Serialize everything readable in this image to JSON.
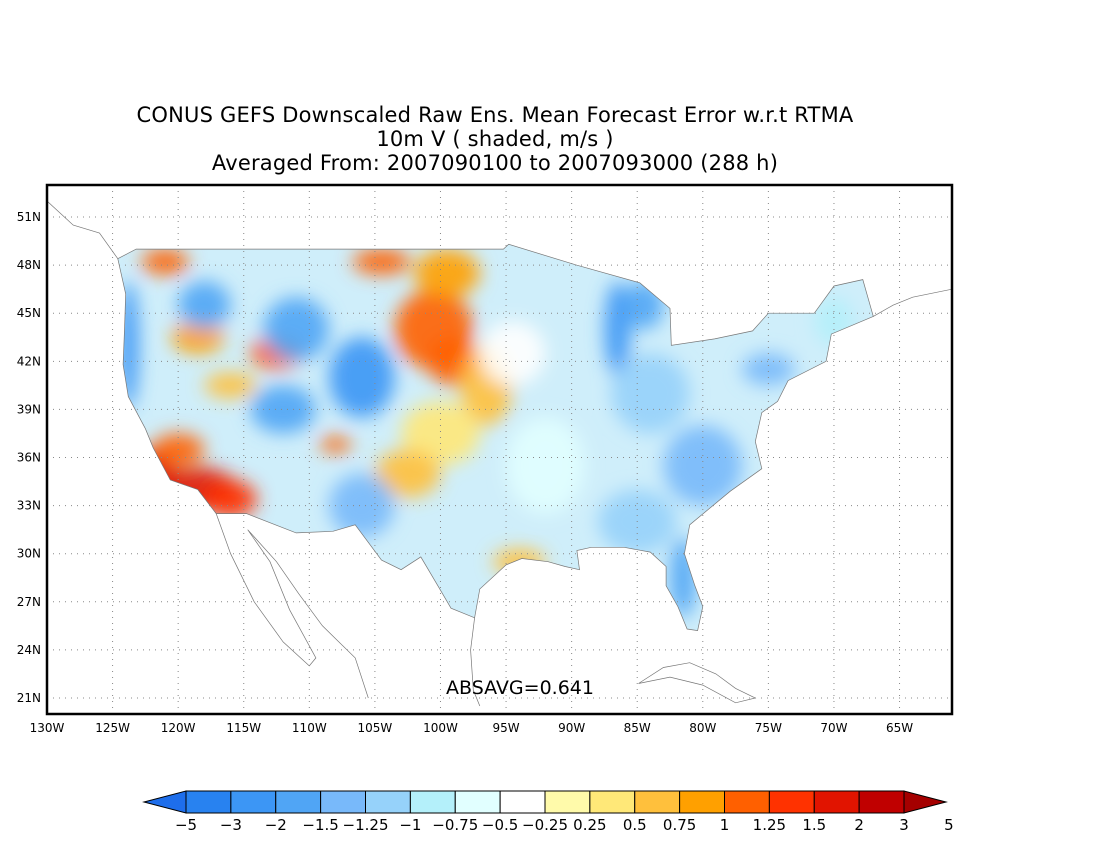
{
  "title": {
    "line1": "CONUS GEFS Downscaled Raw Ens. Mean Forecast Error w.r.t RTMA",
    "line2": "10m V ( shaded, m/s )",
    "line3": "Averaged From: 2007090100 to 2007093000 (288 h)"
  },
  "stat_label": "ABSAVG=0.641",
  "lat_labels": [
    "51N",
    "48N",
    "45N",
    "42N",
    "39N",
    "36N",
    "33N",
    "30N",
    "27N",
    "24N",
    "21N"
  ],
  "lat_values": [
    51,
    48,
    45,
    42,
    39,
    36,
    33,
    30,
    27,
    24,
    21
  ],
  "lon_labels": [
    "130W",
    "125W",
    "120W",
    "115W",
    "110W",
    "105W",
    "100W",
    "95W",
    "90W",
    "85W",
    "80W",
    "75W",
    "70W",
    "65W"
  ],
  "lon_values": [
    -130,
    -125,
    -120,
    -115,
    -110,
    -105,
    -100,
    -95,
    -90,
    -85,
    -80,
    -75,
    -70,
    -65
  ],
  "map_extent": {
    "lon_min": -130,
    "lon_max": -61,
    "lat_min": 20,
    "lat_max": 53
  },
  "colorbar": {
    "labels": [
      "−5",
      "−3",
      "−2",
      "−1.5",
      "−1.25",
      "−1",
      "−0.75",
      "−0.5",
      "−0.25",
      "0.25",
      "0.5",
      "0.75",
      "1",
      "1.25",
      "1.5",
      "2",
      "3",
      "5"
    ],
    "colors": [
      "#1e6eeb",
      "#2882f0",
      "#3c96f5",
      "#50a5f5",
      "#78b9fa",
      "#96d2fa",
      "#b4f0fa",
      "#e1ffff",
      "#ffffff",
      "#fffaaa",
      "#ffe878",
      "#ffc03c",
      "#ffa000",
      "#ff6000",
      "#ff3200",
      "#e11400",
      "#c00000",
      "#a50000"
    ]
  },
  "field_regions": [
    {
      "lon": -122.3,
      "lat": 35.0,
      "rx": 2.2,
      "ry": 1.5,
      "color": "#e11400"
    },
    {
      "lon": -118.5,
      "lat": 34.0,
      "rx": 3.0,
      "ry": 1.4,
      "color": "#e11400"
    },
    {
      "lon": -116.0,
      "lat": 33.4,
      "rx": 2.0,
      "ry": 1.2,
      "color": "#ff3200"
    },
    {
      "lon": -120.0,
      "lat": 36.5,
      "rx": 2.0,
      "ry": 1.0,
      "color": "#ff6000"
    },
    {
      "lon": -100.5,
      "lat": 44.0,
      "rx": 3.0,
      "ry": 2.5,
      "color": "#ff6000"
    },
    {
      "lon": -99.5,
      "lat": 47.5,
      "rx": 2.5,
      "ry": 1.5,
      "color": "#ffa000"
    },
    {
      "lon": -104.5,
      "lat": 48.2,
      "rx": 2.2,
      "ry": 0.8,
      "color": "#ff6000"
    },
    {
      "lon": -99.0,
      "lat": 42.0,
      "rx": 2.0,
      "ry": 1.5,
      "color": "#ff6000"
    },
    {
      "lon": -96.5,
      "lat": 40.5,
      "rx": 2.0,
      "ry": 2.5,
      "color": "#ffc03c"
    },
    {
      "lon": -100.0,
      "lat": 37.5,
      "rx": 3.0,
      "ry": 2.0,
      "color": "#ffe878"
    },
    {
      "lon": -102.5,
      "lat": 35.0,
      "rx": 2.5,
      "ry": 1.5,
      "color": "#ffc03c"
    },
    {
      "lon": -118.5,
      "lat": 43.5,
      "rx": 2.0,
      "ry": 1.0,
      "color": "#ffa000"
    },
    {
      "lon": -112.5,
      "lat": 42.5,
      "rx": 2.0,
      "ry": 1.0,
      "color": "#ff6000"
    },
    {
      "lon": -121.0,
      "lat": 48.2,
      "rx": 1.8,
      "ry": 0.8,
      "color": "#ff6000"
    },
    {
      "lon": -116.0,
      "lat": 40.5,
      "rx": 2.0,
      "ry": 0.8,
      "color": "#ffc03c"
    },
    {
      "lon": -108.0,
      "lat": 36.8,
      "rx": 1.2,
      "ry": 0.5,
      "color": "#ff6000"
    },
    {
      "lon": -123.8,
      "lat": 43.0,
      "rx": 0.8,
      "ry": 4.0,
      "color": "#3c96f5"
    },
    {
      "lon": -118.0,
      "lat": 45.5,
      "rx": 2.0,
      "ry": 1.5,
      "color": "#50a5f5"
    },
    {
      "lon": -111.0,
      "lat": 44.0,
      "rx": 2.5,
      "ry": 2.0,
      "color": "#50a5f5"
    },
    {
      "lon": -106.0,
      "lat": 41.0,
      "rx": 2.5,
      "ry": 2.5,
      "color": "#3c96f5"
    },
    {
      "lon": -112.0,
      "lat": 39.0,
      "rx": 2.5,
      "ry": 1.5,
      "color": "#50a5f5"
    },
    {
      "lon": -106.0,
      "lat": 33.0,
      "rx": 2.5,
      "ry": 2.0,
      "color": "#78b9fa"
    },
    {
      "lon": -86.5,
      "lat": 44.0,
      "rx": 1.0,
      "ry": 3.0,
      "color": "#3c96f5"
    },
    {
      "lon": -84.5,
      "lat": 45.5,
      "rx": 1.5,
      "ry": 1.5,
      "color": "#50a5f5"
    },
    {
      "lon": -84.0,
      "lat": 40.0,
      "rx": 3.0,
      "ry": 2.5,
      "color": "#96d2fa"
    },
    {
      "lon": -80.0,
      "lat": 35.5,
      "rx": 3.0,
      "ry": 2.5,
      "color": "#78b9fa"
    },
    {
      "lon": -85.0,
      "lat": 32.0,
      "rx": 3.0,
      "ry": 2.0,
      "color": "#96d2fa"
    },
    {
      "lon": -81.5,
      "lat": 28.5,
      "rx": 1.0,
      "ry": 2.5,
      "color": "#50a5f5"
    },
    {
      "lon": -75.0,
      "lat": 41.5,
      "rx": 2.0,
      "ry": 1.0,
      "color": "#78b9fa"
    },
    {
      "lon": -70.0,
      "lat": 44.5,
      "rx": 1.5,
      "ry": 1.5,
      "color": "#b4f0fa"
    },
    {
      "lon": -92.0,
      "lat": 35.5,
      "rx": 3.0,
      "ry": 3.0,
      "color": "#e1ffff"
    },
    {
      "lon": -94.5,
      "lat": 42.5,
      "rx": 2.5,
      "ry": 2.0,
      "color": "#ffffff"
    },
    {
      "lon": -94.0,
      "lat": 29.5,
      "rx": 2.0,
      "ry": 0.8,
      "color": "#ffc03c"
    }
  ]
}
